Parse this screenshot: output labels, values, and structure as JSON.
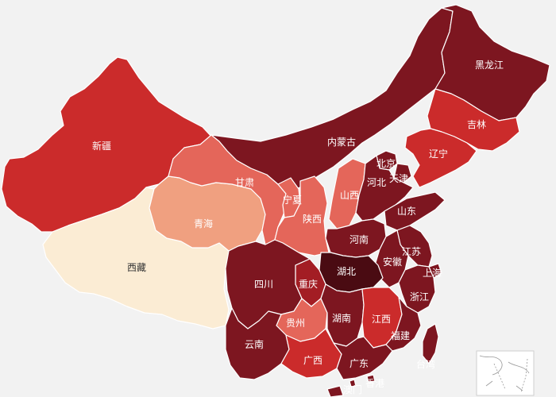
{
  "palette": {
    "background": "#f2f2f2",
    "level_1": "#fbecd4",
    "level_2": "#f0a080",
    "level_3": "#e4665a",
    "level_4": "#cb2b2b",
    "level_5": "#a31d24",
    "level_6": "#7d1620",
    "level_7": "#4a0b12",
    "border": "#ffffff"
  },
  "provinces": [
    {
      "id": "heilongjiang",
      "name": "黑龙江",
      "level": 6
    },
    {
      "id": "jilin",
      "name": "吉林",
      "level": 4
    },
    {
      "id": "liaoning",
      "name": "辽宁",
      "level": 4
    },
    {
      "id": "neimenggu",
      "name": "内蒙古",
      "level": 6
    },
    {
      "id": "xinjiang",
      "name": "新疆",
      "level": 4
    },
    {
      "id": "xizang",
      "name": "西藏",
      "level": 1
    },
    {
      "id": "qinghai",
      "name": "青海",
      "level": 2
    },
    {
      "id": "gansu",
      "name": "甘肃",
      "level": 3
    },
    {
      "id": "ningxia",
      "name": "宁夏",
      "level": 3
    },
    {
      "id": "shaanxi",
      "name": "陕西",
      "level": 3
    },
    {
      "id": "shanxi",
      "name": "山西",
      "level": 3
    },
    {
      "id": "beijing",
      "name": "北京",
      "level": 6
    },
    {
      "id": "tianjin",
      "name": "天津",
      "level": 6
    },
    {
      "id": "hebei",
      "name": "河北",
      "level": 6
    },
    {
      "id": "shandong",
      "name": "山东",
      "level": 6
    },
    {
      "id": "henan",
      "name": "河南",
      "level": 6
    },
    {
      "id": "jiangsu",
      "name": "江苏",
      "level": 6
    },
    {
      "id": "anhui",
      "name": "安徽",
      "level": 6
    },
    {
      "id": "shanghai",
      "name": "上海",
      "level": 6
    },
    {
      "id": "hubei",
      "name": "湖北",
      "level": 7
    },
    {
      "id": "sichuan",
      "name": "四川",
      "level": 6
    },
    {
      "id": "chongqing",
      "name": "重庆",
      "level": 5
    },
    {
      "id": "zhejiang",
      "name": "浙江",
      "level": 6
    },
    {
      "id": "guizhou",
      "name": "贵州",
      "level": 3
    },
    {
      "id": "hunan",
      "name": "湖南",
      "level": 6
    },
    {
      "id": "jiangxi",
      "name": "江西",
      "level": 4
    },
    {
      "id": "fujian",
      "name": "福建",
      "level": 6
    },
    {
      "id": "yunnan",
      "name": "云南",
      "level": 6
    },
    {
      "id": "guangxi",
      "name": "广西",
      "level": 4
    },
    {
      "id": "guangdong",
      "name": "广东",
      "level": 6
    },
    {
      "id": "taiwan",
      "name": "台湾",
      "level": 6
    },
    {
      "id": "hongkong",
      "name": "香港",
      "level": 6
    },
    {
      "id": "macau",
      "name": "澳门",
      "level": 6
    }
  ]
}
